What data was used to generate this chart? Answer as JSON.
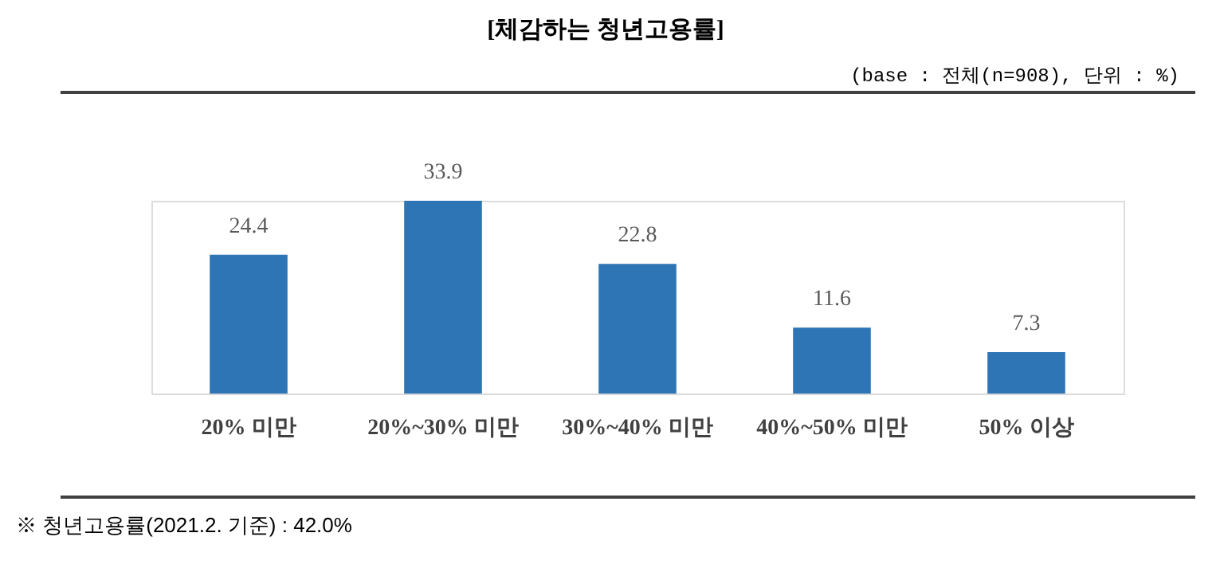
{
  "chart_data": {
    "type": "bar",
    "title": "[체감하는 청년고용률]",
    "subtitle": "(base : 전체(n=908), 단위 : %)",
    "categories": [
      "20% 미만",
      "20%~30% 미만",
      "30%~40% 미만",
      "40%~50% 미만",
      "50% 이상"
    ],
    "values": [
      24.4,
      33.9,
      22.8,
      11.6,
      7.3
    ],
    "color": "#2e75b6",
    "data_labels": true,
    "annotations": [
      "※ 청년고용률(2021.2. 기준) : 42.0%"
    ]
  }
}
